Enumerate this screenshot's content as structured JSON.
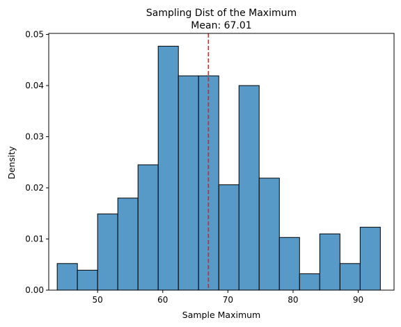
{
  "chart_data": {
    "type": "bar",
    "title": "Sampling Dist of the Maximum",
    "subtitle": "Mean: 67.01",
    "xlabel": "Sample Maximum",
    "ylabel": "Density",
    "xlim": [
      42.5,
      95.5
    ],
    "ylim": [
      0,
      0.0502
    ],
    "xticks": [
      50,
      60,
      70,
      80,
      90
    ],
    "yticks": [
      0.0,
      0.01,
      0.02,
      0.03,
      0.04,
      0.05
    ],
    "ytick_labels": [
      "0.00",
      "0.01",
      "0.02",
      "0.03",
      "0.04",
      "0.05"
    ],
    "bins": [
      {
        "x0": 43.8,
        "x1": 46.9,
        "value": 0.0052
      },
      {
        "x0": 46.9,
        "x1": 50.0,
        "value": 0.0039
      },
      {
        "x0": 50.0,
        "x1": 53.1,
        "value": 0.0149
      },
      {
        "x0": 53.1,
        "x1": 56.2,
        "value": 0.018
      },
      {
        "x0": 56.2,
        "x1": 59.3,
        "value": 0.0245
      },
      {
        "x0": 59.3,
        "x1": 62.4,
        "value": 0.0477
      },
      {
        "x0": 62.4,
        "x1": 65.5,
        "value": 0.0419
      },
      {
        "x0": 65.5,
        "x1": 68.6,
        "value": 0.0419
      },
      {
        "x0": 68.6,
        "x1": 71.7,
        "value": 0.0206
      },
      {
        "x0": 71.7,
        "x1": 74.8,
        "value": 0.04
      },
      {
        "x0": 74.8,
        "x1": 77.9,
        "value": 0.0219
      },
      {
        "x0": 77.9,
        "x1": 81.0,
        "value": 0.0103
      },
      {
        "x0": 81.0,
        "x1": 84.1,
        "value": 0.0032
      },
      {
        "x0": 84.1,
        "x1": 87.2,
        "value": 0.011
      },
      {
        "x0": 87.2,
        "x1": 90.3,
        "value": 0.0052
      },
      {
        "x0": 90.3,
        "x1": 93.4,
        "value": 0.0123
      }
    ],
    "mean_line": {
      "x": 67.01,
      "style": "dashed"
    },
    "grid": false,
    "colors": {
      "bar_fill": "#5799c7",
      "bar_edge": "#000000",
      "mean_line": "#e01e1e",
      "axis": "#000000"
    }
  }
}
